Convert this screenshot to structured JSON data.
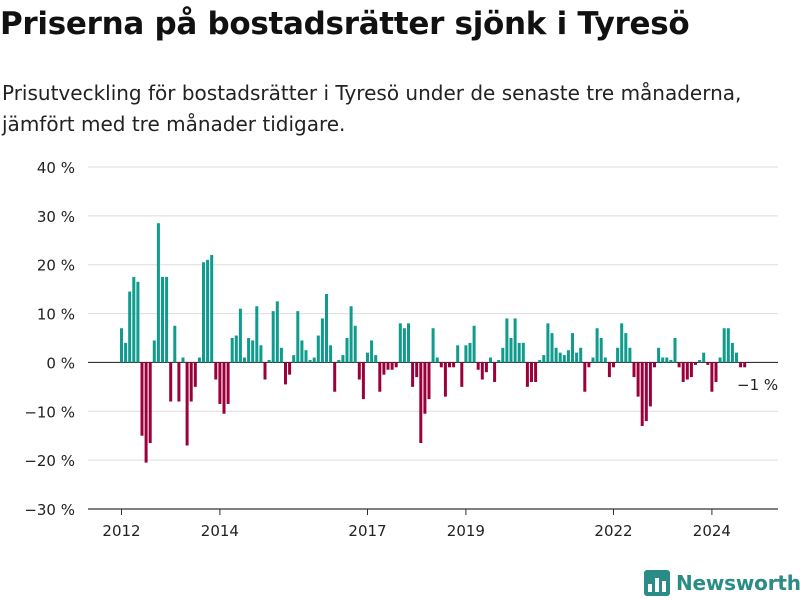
{
  "title": "Priserna på bostadsrätter sjönk i Tyresö",
  "subtitle": "Prisutveckling för bostadsrätter i Tyresö under de senaste tre månaderna, jämfört med tre månader tidigare.",
  "brand": "Newsworthy",
  "colors": {
    "positive": "#0f9b8e",
    "negative": "#9c003b",
    "grid": "#dddddd",
    "axis": "#333333",
    "text": "#222222",
    "brand": "#2a8c84"
  },
  "chart_data": {
    "type": "bar",
    "title": "Priserna på bostadsrätter sjönk i Tyresö",
    "xlabel": "",
    "ylabel": "",
    "ylim": [
      -30,
      40
    ],
    "y_ticks": [
      40,
      30,
      20,
      10,
      0,
      -10,
      -20,
      -30
    ],
    "y_tick_labels": [
      "40 %",
      "30 %",
      "20 %",
      "10 %",
      "0 %",
      "−10 %",
      "−20 %",
      "−30 %"
    ],
    "x_ticks": [
      {
        "label": "2012",
        "index": 0
      },
      {
        "label": "2014",
        "index": 24
      },
      {
        "label": "2017",
        "index": 60
      },
      {
        "label": "2019",
        "index": 84
      },
      {
        "label": "2022",
        "index": 120
      },
      {
        "label": "2024",
        "index": 144
      }
    ],
    "start_month": "2012-01",
    "grid": true,
    "annotation": {
      "text": "−1 %",
      "index": 155
    },
    "values": [
      7,
      4,
      14.5,
      17.5,
      16.5,
      -15,
      -20.5,
      -16.5,
      4.5,
      28.5,
      17.5,
      17.5,
      -8,
      7.5,
      -8,
      1,
      -17,
      -8,
      -5,
      1,
      20.5,
      21,
      22,
      -3.5,
      -8.5,
      -10.5,
      -8.5,
      5,
      5.5,
      11,
      1,
      5,
      4.5,
      11.5,
      3.5,
      -3.5,
      0.5,
      10.5,
      12.5,
      3,
      -4.5,
      -2.5,
      1.5,
      10.5,
      4.5,
      2.5,
      0.5,
      1,
      5.5,
      9,
      14,
      3.5,
      -6,
      0.5,
      1.5,
      5,
      11.5,
      7.5,
      -3.5,
      -7.5,
      2,
      4.5,
      1.5,
      -6,
      -2.5,
      -1.5,
      -1.5,
      -1,
      8,
      7,
      8,
      -5,
      -3,
      -16.5,
      -10.5,
      -7.5,
      7,
      1,
      -1,
      -7,
      -1,
      -1,
      3.5,
      -5,
      3.5,
      4,
      7.5,
      -1.5,
      -3.5,
      -2,
      1,
      -4,
      0.5,
      3,
      9,
      5,
      9,
      4,
      4,
      -5,
      -4,
      -4,
      0.5,
      1.5,
      8,
      6,
      3,
      2,
      1.5,
      2.5,
      6,
      2,
      3,
      -6,
      -1,
      1,
      7,
      5,
      1,
      -3,
      -1,
      3,
      8,
      6,
      3,
      -3,
      -7,
      -13,
      -12,
      -9,
      -1,
      3,
      1,
      1,
      0.5,
      5,
      -1,
      -4,
      -3.5,
      -3,
      -0.5,
      0.5,
      2,
      -0.5,
      -6,
      -4,
      1,
      7,
      7,
      4,
      2,
      -1,
      -1
    ]
  }
}
